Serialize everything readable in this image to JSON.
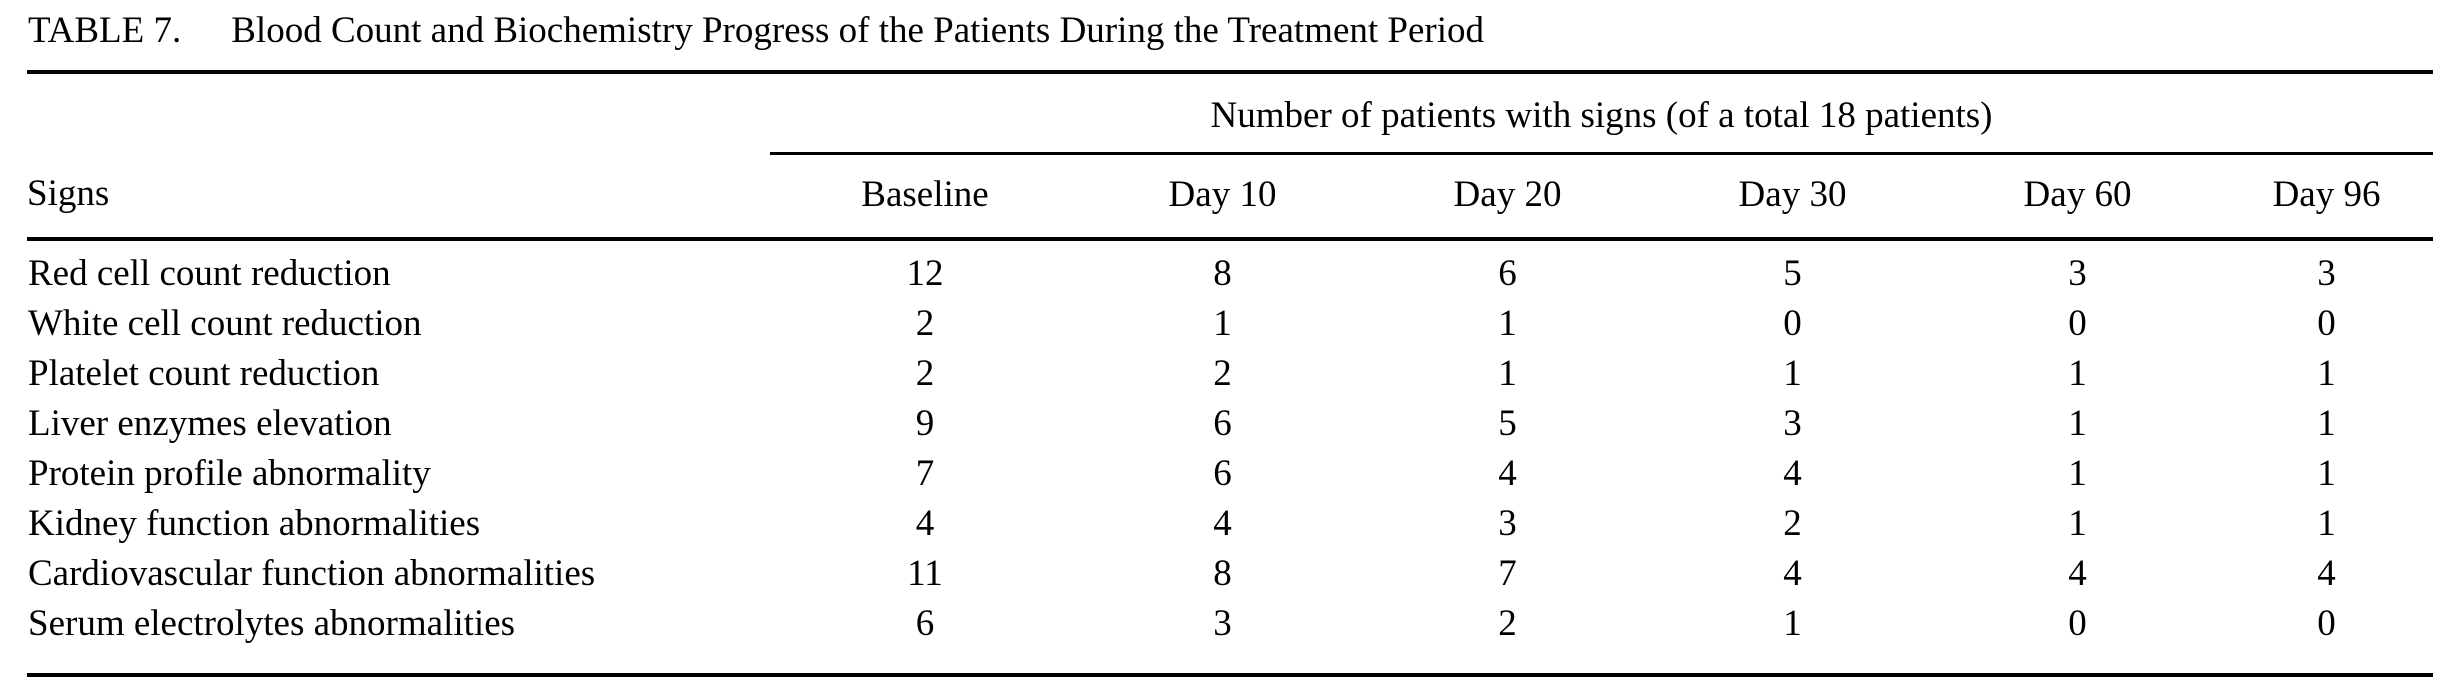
{
  "caption": {
    "label": "TABLE 7.",
    "title": "Blood Count and Biochemistry Progress of the Patients During the Treatment Period"
  },
  "table": {
    "spanner": "Number of patients with signs (of a total 18 patients)",
    "col_headers": [
      "Signs",
      "Baseline",
      "Day 10",
      "Day 20",
      "Day 30",
      "Day 60",
      "Day 96"
    ],
    "rows": [
      {
        "label": "Red cell count reduction",
        "values": [
          12,
          8,
          6,
          5,
          3,
          3
        ]
      },
      {
        "label": "White cell count reduction",
        "values": [
          2,
          1,
          1,
          0,
          0,
          0
        ]
      },
      {
        "label": "Platelet count reduction",
        "values": [
          2,
          2,
          1,
          1,
          1,
          1
        ]
      },
      {
        "label": "Liver enzymes elevation",
        "values": [
          9,
          6,
          5,
          3,
          1,
          1
        ]
      },
      {
        "label": "Protein profile abnormality",
        "values": [
          7,
          6,
          4,
          4,
          1,
          1
        ]
      },
      {
        "label": "Kidney function abnormalities",
        "values": [
          4,
          4,
          3,
          2,
          1,
          1
        ]
      },
      {
        "label": "Cardiovascular function abnormalities",
        "values": [
          11,
          8,
          7,
          4,
          4,
          4
        ]
      },
      {
        "label": "Serum electrolytes abnormalities",
        "values": [
          6,
          3,
          2,
          1,
          0,
          0
        ]
      }
    ],
    "colors": {
      "text": "#000000",
      "background": "#ffffff",
      "rule": "#000000"
    }
  }
}
